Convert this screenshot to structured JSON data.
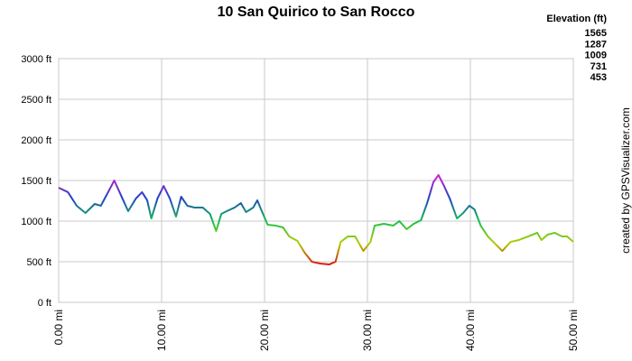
{
  "chart_data": {
    "type": "line",
    "title": "10 San Quirico to San Rocco",
    "legend_title": "Elevation (ft)",
    "color_scale": [
      {
        "value": 1565,
        "color": "#d020d0"
      },
      {
        "value": 1287,
        "color": "#2040c8"
      },
      {
        "value": 1009,
        "color": "#10c050"
      },
      {
        "value": 731,
        "color": "#b0d000"
      },
      {
        "value": 453,
        "color": "#dd1010"
      }
    ],
    "watermark": "created by GPSVisualizer.com",
    "x": [
      0,
      0.9,
      1.75,
      2.6,
      3.5,
      4.1,
      4.8,
      5.4,
      6.0,
      6.75,
      7.5,
      8.1,
      8.6,
      9.0,
      9.6,
      10.2,
      10.8,
      11.4,
      11.9,
      12.5,
      13.2,
      14.0,
      14.7,
      15.3,
      15.8,
      16.5,
      17.1,
      17.7,
      18.2,
      18.9,
      19.3,
      19.7,
      20.3,
      21.1,
      21.8,
      22.4,
      23.2,
      23.9,
      24.6,
      25.4,
      26.3,
      26.9,
      27.4,
      28.1,
      28.8,
      29.6,
      30.3,
      30.7,
      31.6,
      32.5,
      33.1,
      33.8,
      34.5,
      35.2,
      35.8,
      36.4,
      36.9,
      37.4,
      38.0,
      38.7,
      39.3,
      39.9,
      40.4,
      41.0,
      41.7,
      42.4,
      43.1,
      43.9,
      44.7,
      45.6,
      46.5,
      46.9,
      47.5,
      48.2,
      48.9,
      49.4,
      50.0
    ],
    "series": [
      {
        "values": [
          1411,
          1356,
          1189,
          1100,
          1211,
          1189,
          1356,
          1500,
          1333,
          1122,
          1278,
          1356,
          1256,
          1033,
          1278,
          1433,
          1278,
          1056,
          1300,
          1189,
          1167,
          1167,
          1089,
          878,
          1089,
          1133,
          1167,
          1222,
          1111,
          1167,
          1256,
          1133,
          956,
          944,
          922,
          811,
          756,
          611,
          500,
          478,
          467,
          500,
          744,
          811,
          811,
          633,
          744,
          944,
          967,
          944,
          1000,
          900,
          967,
          1011,
          1222,
          1478,
          1567,
          1444,
          1278,
          1033,
          1100,
          1189,
          1144,
          944,
          811,
          722,
          633,
          744,
          767,
          811,
          856,
          767,
          833,
          856,
          811,
          811,
          744
        ]
      }
    ],
    "xlim": [
      0,
      50
    ],
    "ylim": [
      0,
      3000
    ],
    "xticks": [
      {
        "value": 0,
        "label": "0.00 mi"
      },
      {
        "value": 10,
        "label": "10.00 mi"
      },
      {
        "value": 20,
        "label": "20.00 mi"
      },
      {
        "value": 30,
        "label": "30.00 mi"
      },
      {
        "value": 40,
        "label": "40.00 mi"
      },
      {
        "value": 50,
        "label": "50.00 mi"
      }
    ],
    "yticks": [
      {
        "value": 0,
        "label": "0 ft"
      },
      {
        "value": 500,
        "label": "500 ft"
      },
      {
        "value": 1000,
        "label": "1000 ft"
      },
      {
        "value": 1500,
        "label": "1500 ft"
      },
      {
        "value": 2000,
        "label": "2000 ft"
      },
      {
        "value": 2500,
        "label": "2500 ft"
      },
      {
        "value": 3000,
        "label": "3000 ft"
      }
    ],
    "grid": true
  }
}
